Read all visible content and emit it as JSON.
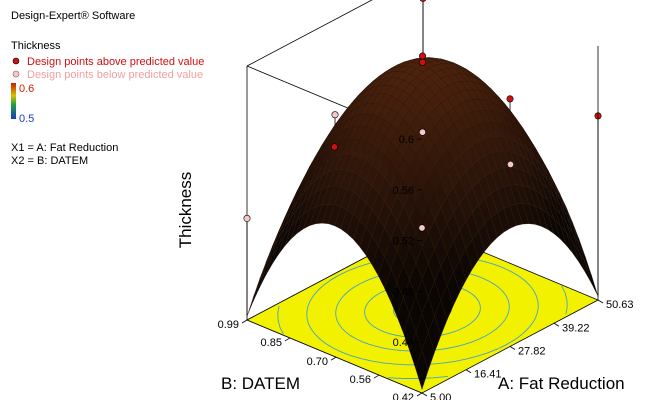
{
  "header": {
    "software": "Design-Expert® Software",
    "response_name": "Thickness"
  },
  "legend": {
    "above": {
      "label": "Design points above predicted value",
      "color": "#d01010"
    },
    "below": {
      "label": "Design points below predicted value",
      "color": "#f0a0a0"
    },
    "colorbar": {
      "high": "0.6",
      "low": "0.5",
      "high_color": "#cc2200",
      "low_color": "#1a3cc0"
    },
    "factor_map": [
      "X1 = A: Fat Reduction",
      "X2 = B: DATEM"
    ]
  },
  "chart_data": {
    "type": "surface3d",
    "title": "",
    "zlabel": "Thickness",
    "xlabel": "A: Fat Reduction",
    "ylabel": "B: DATEM",
    "z_ticks": [
      "0.44",
      "0.48",
      "0.52",
      "0.56",
      "0.6"
    ],
    "x_ticks": [
      "5.00",
      "16.41",
      "27.82",
      "39.22",
      "50.63"
    ],
    "y_ticks": [
      "0.42",
      "0.56",
      "0.70",
      "0.85",
      "0.99"
    ],
    "xlim": [
      5.0,
      50.63
    ],
    "ylim": [
      0.42,
      0.99
    ],
    "zlim": [
      0.44,
      0.6
    ],
    "surface": {
      "type": "quadratic",
      "center_a": 27.82,
      "center_b": 0.705,
      "peak": 0.593,
      "curvature_a": 0.09,
      "curvature_b": 0.1,
      "surface_color": "#000000",
      "floor_color": "#f2f200",
      "contour_color": "#4aa0c8"
    },
    "design_points": [
      {
        "a": 5.0,
        "b": 0.42,
        "thickness": 0.53,
        "position": "below"
      },
      {
        "a": 5.0,
        "b": 0.99,
        "thickness": 0.48,
        "position": "below"
      },
      {
        "a": 50.63,
        "b": 0.42,
        "thickness": 0.545,
        "position": "above"
      },
      {
        "a": 50.63,
        "b": 0.99,
        "thickness": 0.58,
        "position": "above"
      },
      {
        "a": 27.82,
        "b": 0.705,
        "thickness": 0.6,
        "position": "above"
      },
      {
        "a": 27.82,
        "b": 0.705,
        "thickness": 0.595,
        "position": "above"
      },
      {
        "a": 27.82,
        "b": 0.705,
        "thickness": 0.54,
        "position": "below"
      },
      {
        "a": 27.82,
        "b": 0.42,
        "thickness": 0.595,
        "position": "above"
      },
      {
        "a": 5.0,
        "b": 0.705,
        "thickness": 0.565,
        "position": "above"
      },
      {
        "a": 50.63,
        "b": 0.705,
        "thickness": 0.478,
        "position": "below"
      },
      {
        "a": 27.82,
        "b": 0.99,
        "thickness": 0.525,
        "position": "below"
      }
    ]
  }
}
